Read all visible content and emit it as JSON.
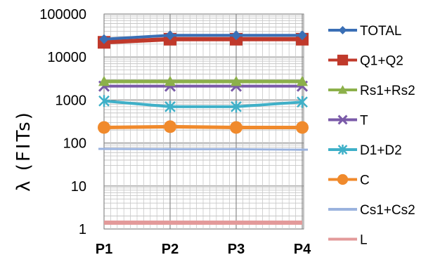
{
  "chart_data": {
    "type": "line",
    "title": "",
    "xlabel": "",
    "ylabel": "λ (FITs)",
    "yscale": "log",
    "ylim": [
      1,
      100000
    ],
    "ytick_labels": [
      "1",
      "10",
      "100",
      "1000",
      "10000",
      "100000"
    ],
    "categories": [
      "P1",
      "P2",
      "P3",
      "P4"
    ],
    "grid": true,
    "legend_position": "right",
    "series": [
      {
        "name": "TOTAL",
        "color": "#3a6fb5",
        "marker": "diamond",
        "values": [
          26000,
          32000,
          32000,
          32000
        ]
      },
      {
        "name": "Q1+Q2",
        "color": "#c0392b",
        "marker": "square",
        "values": [
          22000,
          26000,
          26000,
          26000
        ]
      },
      {
        "name": "Rs1+Rs2",
        "color": "#8cb04a",
        "marker": "triangle",
        "values": [
          2700,
          2700,
          2700,
          2700
        ]
      },
      {
        "name": "T",
        "color": "#7a5aa8",
        "marker": "x",
        "values": [
          2100,
          2100,
          2100,
          2100
        ]
      },
      {
        "name": "D1+D2",
        "color": "#3fb0c8",
        "marker": "star",
        "values": [
          950,
          700,
          700,
          900
        ]
      },
      {
        "name": "C",
        "color": "#f08a2c",
        "marker": "circle",
        "values": [
          230,
          240,
          230,
          230
        ]
      },
      {
        "name": "Cs1+Cs2",
        "color": "#9bb3de",
        "marker": "dash",
        "values": [
          73,
          72,
          72,
          70
        ]
      },
      {
        "name": "L",
        "color": "#e39a9a",
        "marker": "none",
        "values": [
          1.4,
          1.4,
          1.4,
          1.4
        ]
      }
    ]
  }
}
